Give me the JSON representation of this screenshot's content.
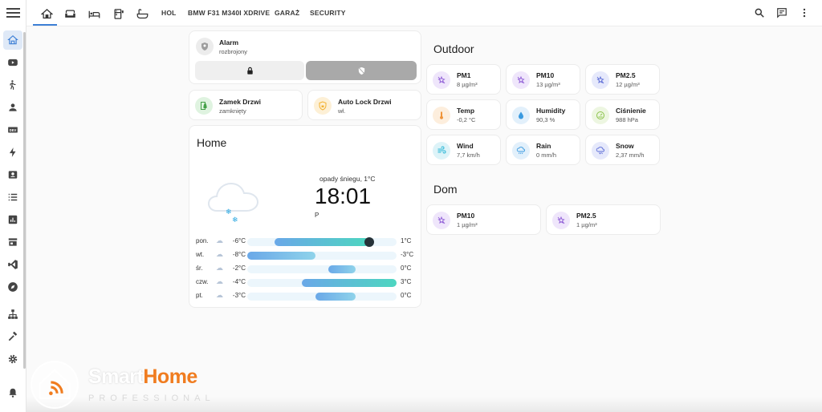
{
  "topbar": {
    "tabs": [
      {
        "type": "icon",
        "icon": "home-icon",
        "active": true
      },
      {
        "type": "icon",
        "icon": "sofa-icon"
      },
      {
        "type": "icon",
        "icon": "bed-icon"
      },
      {
        "type": "icon",
        "icon": "fridge-icon"
      },
      {
        "type": "icon",
        "icon": "bathtub-icon"
      },
      {
        "type": "text",
        "label": "HOL"
      },
      {
        "type": "text",
        "label": "BMW F31 M340I XDRIVE"
      },
      {
        "type": "text",
        "label": "GARAŻ"
      },
      {
        "type": "text",
        "label": "SECURITY"
      }
    ],
    "actions": [
      "search-icon",
      "assist-chat-icon",
      "more-vert-icon"
    ]
  },
  "sidebar": {
    "items": [
      "overview-icon",
      "youtube-icon",
      "motion-icon",
      "person-icon",
      "dev-icon",
      "energy-icon",
      "contact-card-icon",
      "list-icon",
      "chart-icon",
      "store-icon",
      "vscode-icon",
      "compass-icon",
      "network-icon",
      "hammer-icon",
      "gear-icon",
      "bell-icon"
    ]
  },
  "alarm": {
    "name": "Alarm",
    "state": "rozbrojony"
  },
  "lock": {
    "name": "Zamek Drzwi",
    "state": "zamknięty"
  },
  "autolock": {
    "name": "Auto Lock Drzwi",
    "state": "wł."
  },
  "weather": {
    "title": "Home",
    "condition": "opady śniegu, 1°C",
    "time": "18:01",
    "wind_dir": "P",
    "forecast": [
      {
        "day": "pon.",
        "low": "-6°C",
        "high": "1°C",
        "range": [
          -6,
          1
        ],
        "now": 1
      },
      {
        "day": "wt.",
        "low": "-8°C",
        "high": "-3°C",
        "range": [
          -8,
          -3
        ]
      },
      {
        "day": "śr.",
        "low": "-2°C",
        "high": "0°C",
        "range": [
          -2,
          0
        ]
      },
      {
        "day": "czw.",
        "low": "-4°C",
        "high": "3°C",
        "range": [
          -4,
          3
        ]
      },
      {
        "day": "pt.",
        "low": "-3°C",
        "high": "0°C",
        "range": [
          -3,
          0
        ]
      }
    ],
    "scale": [
      -8,
      3
    ]
  },
  "outdoor": {
    "title": "Outdoor",
    "sensors": [
      {
        "name": "PM1",
        "value": "8 µg/m³",
        "icon": "molecule-icon",
        "color": "#8e5bd6",
        "bg": "#efe6fb"
      },
      {
        "name": "PM10",
        "value": "13 µg/m³",
        "icon": "molecule-icon",
        "color": "#8e5bd6",
        "bg": "#efe6fb"
      },
      {
        "name": "PM2.5",
        "value": "12 µg/m³",
        "icon": "molecule-icon",
        "color": "#5b6bd6",
        "bg": "#e6e9fb"
      },
      {
        "name": "Temp",
        "value": "-0,2 °C",
        "icon": "thermometer-icon",
        "color": "#f0943a",
        "bg": "#fdeedd"
      },
      {
        "name": "Humidity",
        "value": "90,3 %",
        "icon": "water-drop-icon",
        "color": "#3a9ae0",
        "bg": "#e2f0fb"
      },
      {
        "name": "Ciśnienie",
        "value": "988 hPa",
        "icon": "gauge-icon",
        "color": "#8bc34a",
        "bg": "#edf6e1"
      },
      {
        "name": "Wind",
        "value": "7,7 km/h",
        "icon": "wind-icon",
        "color": "#2cb7d6",
        "bg": "#ddf3f8"
      },
      {
        "name": "Rain",
        "value": "0 mm/h",
        "icon": "rain-icon",
        "color": "#3a9ae0",
        "bg": "#e2f0fb"
      },
      {
        "name": "Snow",
        "value": "2,37 mm/h",
        "icon": "snow-icon",
        "color": "#5b6bd6",
        "bg": "#e6e9fb"
      }
    ]
  },
  "dom": {
    "title": "Dom",
    "sensors": [
      {
        "name": "PM10",
        "value": "1 µg/m³",
        "icon": "molecule-icon",
        "color": "#8e5bd6",
        "bg": "#efe6fb"
      },
      {
        "name": "PM2.5",
        "value": "1 µg/m³",
        "icon": "molecule-icon",
        "color": "#8e5bd6",
        "bg": "#efe6fb"
      }
    ]
  },
  "watermark": {
    "word1": "Smart",
    "word2": "Home",
    "tagline": "PROFESSIONAL",
    "accent": "#f07c1f"
  }
}
